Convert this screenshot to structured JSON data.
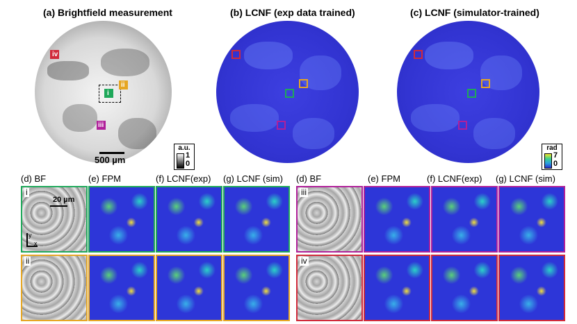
{
  "titles": {
    "a": "(a) Brightfield measurement",
    "b": "(b) LCNF (exp data trained)",
    "c": "(c) LCNF (simulator-trained)"
  },
  "scalebar": {
    "text": "500 µm"
  },
  "tile_scalebar": {
    "text": "20 µm"
  },
  "axes_glyph": {
    "y": "y",
    "x": "x"
  },
  "colorbar_bf": {
    "title": "a.u.",
    "max": "1",
    "min": "0"
  },
  "colorbar_phase": {
    "title": "rad",
    "max": "7",
    "min": "0"
  },
  "roi_labels": {
    "i": "i",
    "ii": "ii",
    "iii": "iii",
    "iv": "iv"
  },
  "colors": {
    "i": "#1fa85a",
    "ii": "#e6a623",
    "iii": "#b0209a",
    "iv": "#d12a3a"
  },
  "left_group": {
    "labels": [
      "(d) BF",
      "(e) FPM",
      "(f) LCNF(exp)",
      "(g) LCNF (sim)"
    ],
    "rows": [
      "i",
      "ii"
    ]
  },
  "right_group": {
    "labels": [
      "(d) BF",
      "(e) FPM",
      "(f) LCNF(exp)",
      "(g) LCNF (sim)"
    ],
    "rows": [
      "iii",
      "iv"
    ]
  }
}
